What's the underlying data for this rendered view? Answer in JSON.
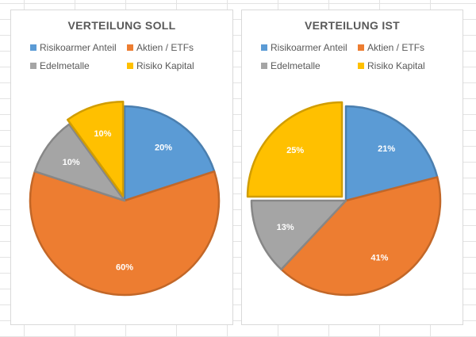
{
  "chart_data": [
    {
      "type": "pie",
      "title": "VERTEILUNG SOLL",
      "legend_position": "top",
      "categories": [
        "Risikoarmer Anteil",
        "Aktien / ETFs",
        "Edelmetalle",
        "Risiko Kapital"
      ],
      "values": [
        20,
        60,
        10,
        10
      ],
      "labels": [
        "20%",
        "60%",
        "10%",
        "10%"
      ],
      "colors": [
        "#5b9bd5",
        "#ed7d31",
        "#a5a5a5",
        "#ffc000"
      ],
      "exploded_slice": "Risiko Kapital"
    },
    {
      "type": "pie",
      "title": "VERTEILUNG IST",
      "legend_position": "top",
      "categories": [
        "Risikoarmer Anteil",
        "Aktien / ETFs",
        "Edelmetalle",
        "Risiko Kapital"
      ],
      "values": [
        21,
        41,
        13,
        25
      ],
      "labels": [
        "21%",
        "41%",
        "13%",
        "25%"
      ],
      "colors": [
        "#5b9bd5",
        "#ed7d31",
        "#a5a5a5",
        "#ffc000"
      ],
      "exploded_slice": "Risiko Kapital"
    }
  ]
}
